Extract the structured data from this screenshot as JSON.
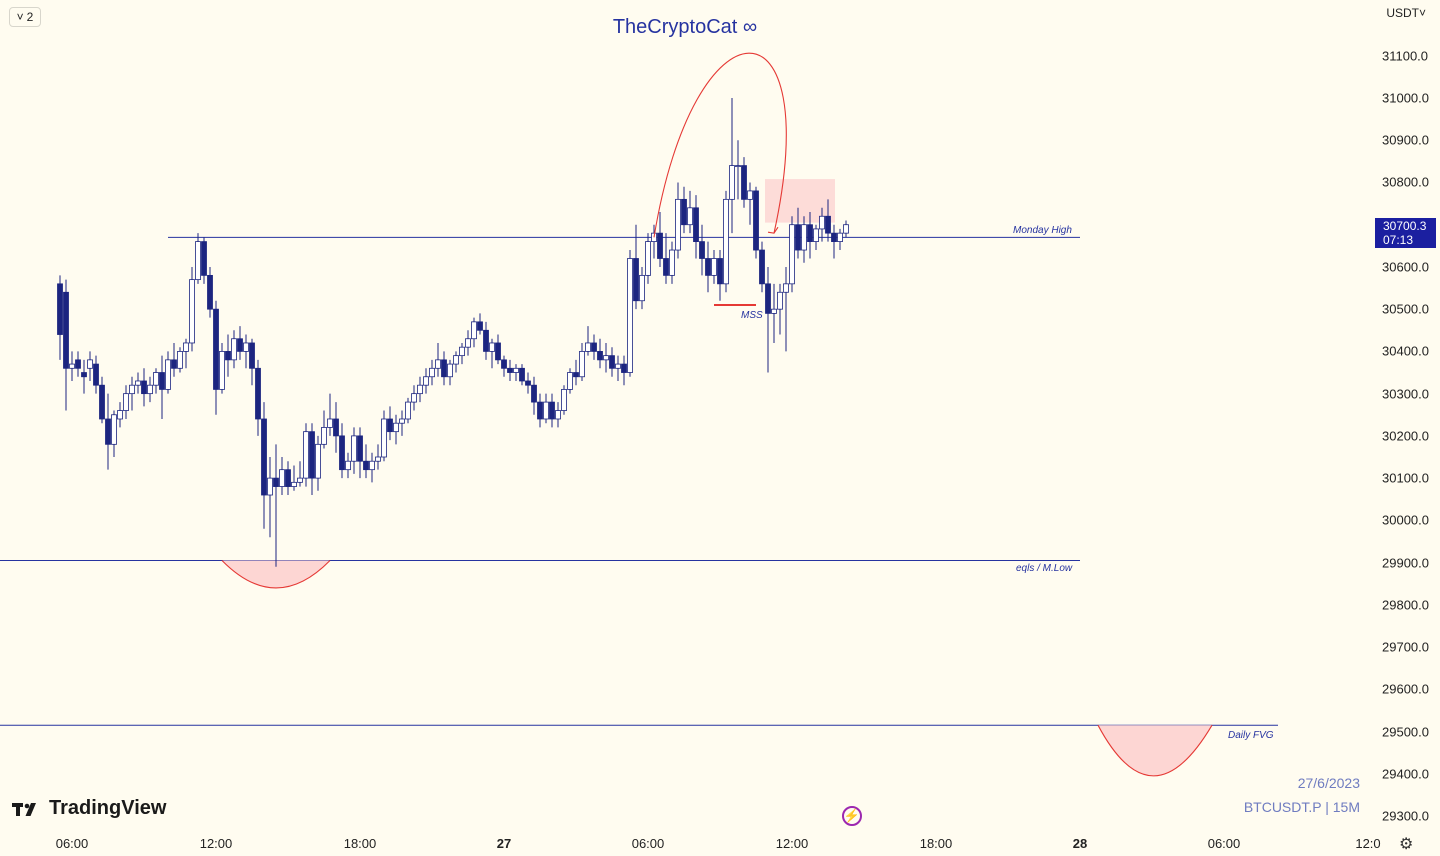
{
  "header": {
    "layout_count": "2",
    "layout_chevron_icon": "chevron-down-icon",
    "title": "TheCryptoCat ∞",
    "currency": "USDT",
    "currency_chevron_icon": "chevron-down-icon"
  },
  "price_tag": {
    "price": "30700.3",
    "countdown": "07:13"
  },
  "branding": {
    "logo_text": "TradingView",
    "logo_icon": "tradingview-logo-icon"
  },
  "info": {
    "date": "27/6/2023",
    "symbol": "BTCUSDT.P | 15M"
  },
  "icons": {
    "replay": "lightning-icon",
    "settings": "gear-icon"
  },
  "colors": {
    "background": "#fffcf0",
    "line": "#2633a0",
    "candle_stroke": "#1c2580",
    "highlight": "#e53935",
    "zone_fill": "#fdd6d3",
    "price_tag": "#1b1fa0"
  },
  "chart_data": {
    "type": "candlestick",
    "title": "TheCryptoCat ∞",
    "symbol": "BTCUSDT.P",
    "timeframe": "15M",
    "y_axis": {
      "ticks": [
        31100.0,
        31000.0,
        30900.0,
        30800.0,
        30700.0,
        30600.0,
        30500.0,
        30400.0,
        30300.0,
        30200.0,
        30100.0,
        30000.0,
        29900.0,
        29800.0,
        29700.0,
        29600.0,
        29500.0,
        29400.0,
        29300.0
      ],
      "tick_labels": [
        "31100.0",
        "31000.0",
        "30900.0",
        "30800.0",
        "30700.0",
        "30600.0",
        "30500.0",
        "30400.0",
        "30300.0",
        "30200.0",
        "30100.0",
        "30000.0",
        "29900.0",
        "29800.0",
        "29700.0",
        "29600.0",
        "29500.0",
        "29400.0",
        "29300.0"
      ],
      "range": [
        29270,
        31200
      ],
      "unit": "USDT"
    },
    "x_axis": {
      "tick_labels": [
        "06:00",
        "12:00",
        "18:00",
        "27",
        "06:00",
        "12:00",
        "18:00",
        "28",
        "06:00",
        "12:0"
      ],
      "bold_ticks": [
        "27",
        "28"
      ],
      "tick_times_hours": [
        6,
        12,
        18,
        24,
        30,
        36,
        42,
        48,
        54,
        60
      ],
      "range_hours": [
        5.5,
        60.4
      ]
    },
    "candles": [
      [
        5.5,
        30560,
        30580,
        30380,
        30440
      ],
      [
        5.75,
        30540,
        30570,
        30260,
        30360
      ],
      [
        6.0,
        30360,
        30400,
        30330,
        30370
      ],
      [
        6.25,
        30380,
        30400,
        30340,
        30360
      ],
      [
        6.5,
        30350,
        30380,
        30300,
        30340
      ],
      [
        6.75,
        30360,
        30400,
        30330,
        30380
      ],
      [
        7.0,
        30370,
        30390,
        30300,
        30320
      ],
      [
        7.25,
        30320,
        30340,
        30230,
        30240
      ],
      [
        7.5,
        30240,
        30300,
        30120,
        30180
      ],
      [
        7.75,
        30180,
        30260,
        30150,
        30250
      ],
      [
        8.0,
        30240,
        30280,
        30220,
        30260
      ],
      [
        8.25,
        30260,
        30320,
        30240,
        30300
      ],
      [
        8.5,
        30300,
        30340,
        30260,
        30320
      ],
      [
        8.75,
        30320,
        30350,
        30300,
        30330
      ],
      [
        9.0,
        30330,
        30360,
        30270,
        30300
      ],
      [
        9.25,
        30300,
        30340,
        30280,
        30320
      ],
      [
        9.5,
        30320,
        30360,
        30300,
        30350
      ],
      [
        9.75,
        30350,
        30390,
        30240,
        30310
      ],
      [
        10.0,
        30310,
        30400,
        30300,
        30380
      ],
      [
        10.25,
        30380,
        30420,
        30340,
        30360
      ],
      [
        10.5,
        30360,
        30410,
        30350,
        30400
      ],
      [
        10.75,
        30400,
        30430,
        30360,
        30420
      ],
      [
        11.0,
        30420,
        30600,
        30400,
        30570
      ],
      [
        11.25,
        30570,
        30680,
        30560,
        30660
      ],
      [
        11.5,
        30660,
        30670,
        30560,
        30580
      ],
      [
        11.75,
        30580,
        30600,
        30480,
        30500
      ],
      [
        12.0,
        30500,
        30520,
        30250,
        30310
      ],
      [
        12.25,
        30310,
        30420,
        30300,
        30400
      ],
      [
        12.5,
        30400,
        30440,
        30340,
        30380
      ],
      [
        12.75,
        30380,
        30450,
        30360,
        30430
      ],
      [
        13.0,
        30430,
        30460,
        30380,
        30400
      ],
      [
        13.25,
        30400,
        30440,
        30360,
        30420
      ],
      [
        13.5,
        30420,
        30430,
        30320,
        30360
      ],
      [
        13.75,
        30360,
        30380,
        30200,
        30240
      ],
      [
        14.0,
        30240,
        30280,
        29980,
        30060
      ],
      [
        14.25,
        30060,
        30150,
        29960,
        30100
      ],
      [
        14.5,
        30100,
        30180,
        29890,
        30080
      ],
      [
        14.75,
        30080,
        30150,
        30060,
        30120
      ],
      [
        15.0,
        30120,
        30140,
        30060,
        30080
      ],
      [
        15.25,
        30080,
        30130,
        30070,
        30090
      ],
      [
        15.5,
        30090,
        30140,
        30080,
        30100
      ],
      [
        15.75,
        30100,
        30230,
        30080,
        30210
      ],
      [
        16.0,
        30210,
        30230,
        30060,
        30100
      ],
      [
        16.25,
        30100,
        30200,
        30070,
        30180
      ],
      [
        16.5,
        30180,
        30260,
        30170,
        30220
      ],
      [
        16.75,
        30220,
        30300,
        30200,
        30240
      ],
      [
        17.0,
        30240,
        30280,
        30160,
        30200
      ],
      [
        17.25,
        30200,
        30230,
        30100,
        30120
      ],
      [
        17.5,
        30120,
        30160,
        30100,
        30140
      ],
      [
        17.75,
        30140,
        30220,
        30110,
        30200
      ],
      [
        18.0,
        30200,
        30220,
        30100,
        30140
      ],
      [
        18.25,
        30140,
        30180,
        30100,
        30120
      ],
      [
        18.5,
        30120,
        30160,
        30090,
        30140
      ],
      [
        18.75,
        30140,
        30180,
        30120,
        30150
      ],
      [
        19.0,
        30150,
        30260,
        30140,
        30240
      ],
      [
        19.25,
        30240,
        30270,
        30190,
        30210
      ],
      [
        19.5,
        30210,
        30250,
        30180,
        30230
      ],
      [
        19.75,
        30230,
        30260,
        30200,
        30240
      ],
      [
        20.0,
        30240,
        30290,
        30230,
        30280
      ],
      [
        20.25,
        30280,
        30320,
        30260,
        30300
      ],
      [
        20.5,
        30300,
        30340,
        30280,
        30320
      ],
      [
        20.75,
        30320,
        30360,
        30300,
        30340
      ],
      [
        21.0,
        30340,
        30380,
        30320,
        30360
      ],
      [
        21.25,
        30360,
        30420,
        30340,
        30380
      ],
      [
        21.5,
        30380,
        30400,
        30320,
        30340
      ],
      [
        21.75,
        30340,
        30380,
        30320,
        30370
      ],
      [
        22.0,
        30370,
        30400,
        30350,
        30390
      ],
      [
        22.25,
        30390,
        30420,
        30370,
        30410
      ],
      [
        22.5,
        30410,
        30450,
        30390,
        30430
      ],
      [
        22.75,
        30430,
        30480,
        30410,
        30470
      ],
      [
        23.0,
        30470,
        30490,
        30440,
        30450
      ],
      [
        23.25,
        30450,
        30470,
        30380,
        30400
      ],
      [
        23.5,
        30400,
        30430,
        30360,
        30420
      ],
      [
        23.75,
        30420,
        30440,
        30370,
        30380
      ],
      [
        24.0,
        30380,
        30390,
        30340,
        30360
      ],
      [
        24.25,
        30360,
        30380,
        30330,
        30350
      ],
      [
        24.5,
        30350,
        30370,
        30330,
        30360
      ],
      [
        24.75,
        30360,
        30370,
        30320,
        30330
      ],
      [
        25.0,
        30330,
        30350,
        30300,
        30320
      ],
      [
        25.25,
        30320,
        30340,
        30250,
        30280
      ],
      [
        25.5,
        30280,
        30300,
        30220,
        30240
      ],
      [
        25.75,
        30240,
        30300,
        30230,
        30280
      ],
      [
        26.0,
        30280,
        30300,
        30220,
        30240
      ],
      [
        26.25,
        30240,
        30280,
        30220,
        30260
      ],
      [
        26.5,
        30260,
        30320,
        30250,
        30310
      ],
      [
        26.75,
        30310,
        30360,
        30300,
        30350
      ],
      [
        27.0,
        30350,
        30380,
        30320,
        30340
      ],
      [
        27.25,
        30340,
        30420,
        30330,
        30400
      ],
      [
        27.5,
        30400,
        30460,
        30390,
        30420
      ],
      [
        27.75,
        30420,
        30440,
        30380,
        30400
      ],
      [
        28.0,
        30400,
        30430,
        30360,
        30380
      ],
      [
        28.25,
        30380,
        30420,
        30350,
        30390
      ],
      [
        28.5,
        30390,
        30410,
        30340,
        30360
      ],
      [
        28.75,
        30360,
        30390,
        30330,
        30370
      ],
      [
        29.0,
        30370,
        30390,
        30320,
        30350
      ],
      [
        29.25,
        30350,
        30640,
        30340,
        30620
      ],
      [
        29.5,
        30620,
        30700,
        30500,
        30520
      ],
      [
        29.75,
        30520,
        30600,
        30500,
        30580
      ],
      [
        30.0,
        30580,
        30680,
        30560,
        30660
      ],
      [
        30.25,
        30660,
        30700,
        30620,
        30680
      ],
      [
        30.5,
        30680,
        30730,
        30600,
        30620
      ],
      [
        30.75,
        30620,
        30680,
        30560,
        30580
      ],
      [
        31.0,
        30580,
        30660,
        30560,
        30640
      ],
      [
        31.25,
        30640,
        30800,
        30620,
        30760
      ],
      [
        31.5,
        30760,
        30790,
        30680,
        30700
      ],
      [
        31.75,
        30700,
        30780,
        30680,
        30740
      ],
      [
        32.0,
        30740,
        30770,
        30620,
        30660
      ],
      [
        32.25,
        30660,
        30700,
        30580,
        30620
      ],
      [
        32.5,
        30620,
        30660,
        30540,
        30580
      ],
      [
        32.75,
        30580,
        30640,
        30560,
        30620
      ],
      [
        33.0,
        30620,
        30640,
        30520,
        30560
      ],
      [
        33.25,
        30560,
        30780,
        30540,
        30760
      ],
      [
        33.5,
        30760,
        31000,
        30680,
        30840
      ],
      [
        33.75,
        30840,
        30900,
        30760,
        30840
      ],
      [
        34.0,
        30840,
        30860,
        30740,
        30760
      ],
      [
        34.25,
        30760,
        30800,
        30700,
        30780
      ],
      [
        34.5,
        30780,
        30790,
        30620,
        30640
      ],
      [
        34.75,
        30640,
        30660,
        30540,
        30560
      ],
      [
        35.0,
        30560,
        30600,
        30350,
        30490
      ],
      [
        35.25,
        30490,
        30560,
        30420,
        30500
      ],
      [
        35.5,
        30500,
        30560,
        30440,
        30540
      ],
      [
        35.75,
        30540,
        30600,
        30400,
        30560
      ],
      [
        36.0,
        30560,
        30720,
        30540,
        30700
      ],
      [
        36.25,
        30700,
        30740,
        30620,
        30640
      ],
      [
        36.5,
        30640,
        30720,
        30610,
        30700
      ],
      [
        36.75,
        30700,
        30730,
        30620,
        30660
      ],
      [
        37.0,
        30660,
        30700,
        30640,
        30690
      ],
      [
        37.25,
        30690,
        30740,
        30660,
        30720
      ],
      [
        37.5,
        30720,
        30760,
        30660,
        30680
      ],
      [
        37.75,
        30680,
        30700,
        30620,
        30660
      ],
      [
        38.0,
        30660,
        30690,
        30640,
        30680
      ],
      [
        38.25,
        30680,
        30710,
        30670,
        30700
      ]
    ],
    "horizontal_lines": [
      {
        "label": "Monday High",
        "price": 30670
      },
      {
        "label": "eqls / M.Low",
        "price": 29905
      },
      {
        "label": "Daily FVG",
        "price": 29515
      }
    ],
    "annotations": [
      {
        "label": "MSS",
        "price": 30510,
        "time_start": 32.75,
        "time_end": 34.5
      },
      {
        "type": "zone",
        "price_top": 30808,
        "price_bottom": 30705,
        "time_start": 34.75,
        "time_end": 37.5
      },
      {
        "type": "arc",
        "direction": "up",
        "from": [
          30.25,
          30670
        ],
        "peak": [
          32.875,
          31025
        ],
        "to": [
          35.25,
          30680
        ],
        "arrow": true
      },
      {
        "type": "arc",
        "direction": "down",
        "from": [
          12.25,
          29905
        ],
        "bottom": [
          14.5,
          29840
        ],
        "to": [
          16.75,
          29905
        ]
      },
      {
        "type": "arc",
        "direction": "down",
        "from": [
          48.75,
          29515
        ],
        "bottom": [
          51.0,
          29395
        ],
        "to": [
          53.5,
          29515
        ]
      }
    ],
    "last_price": 30700.3,
    "grid": false
  }
}
